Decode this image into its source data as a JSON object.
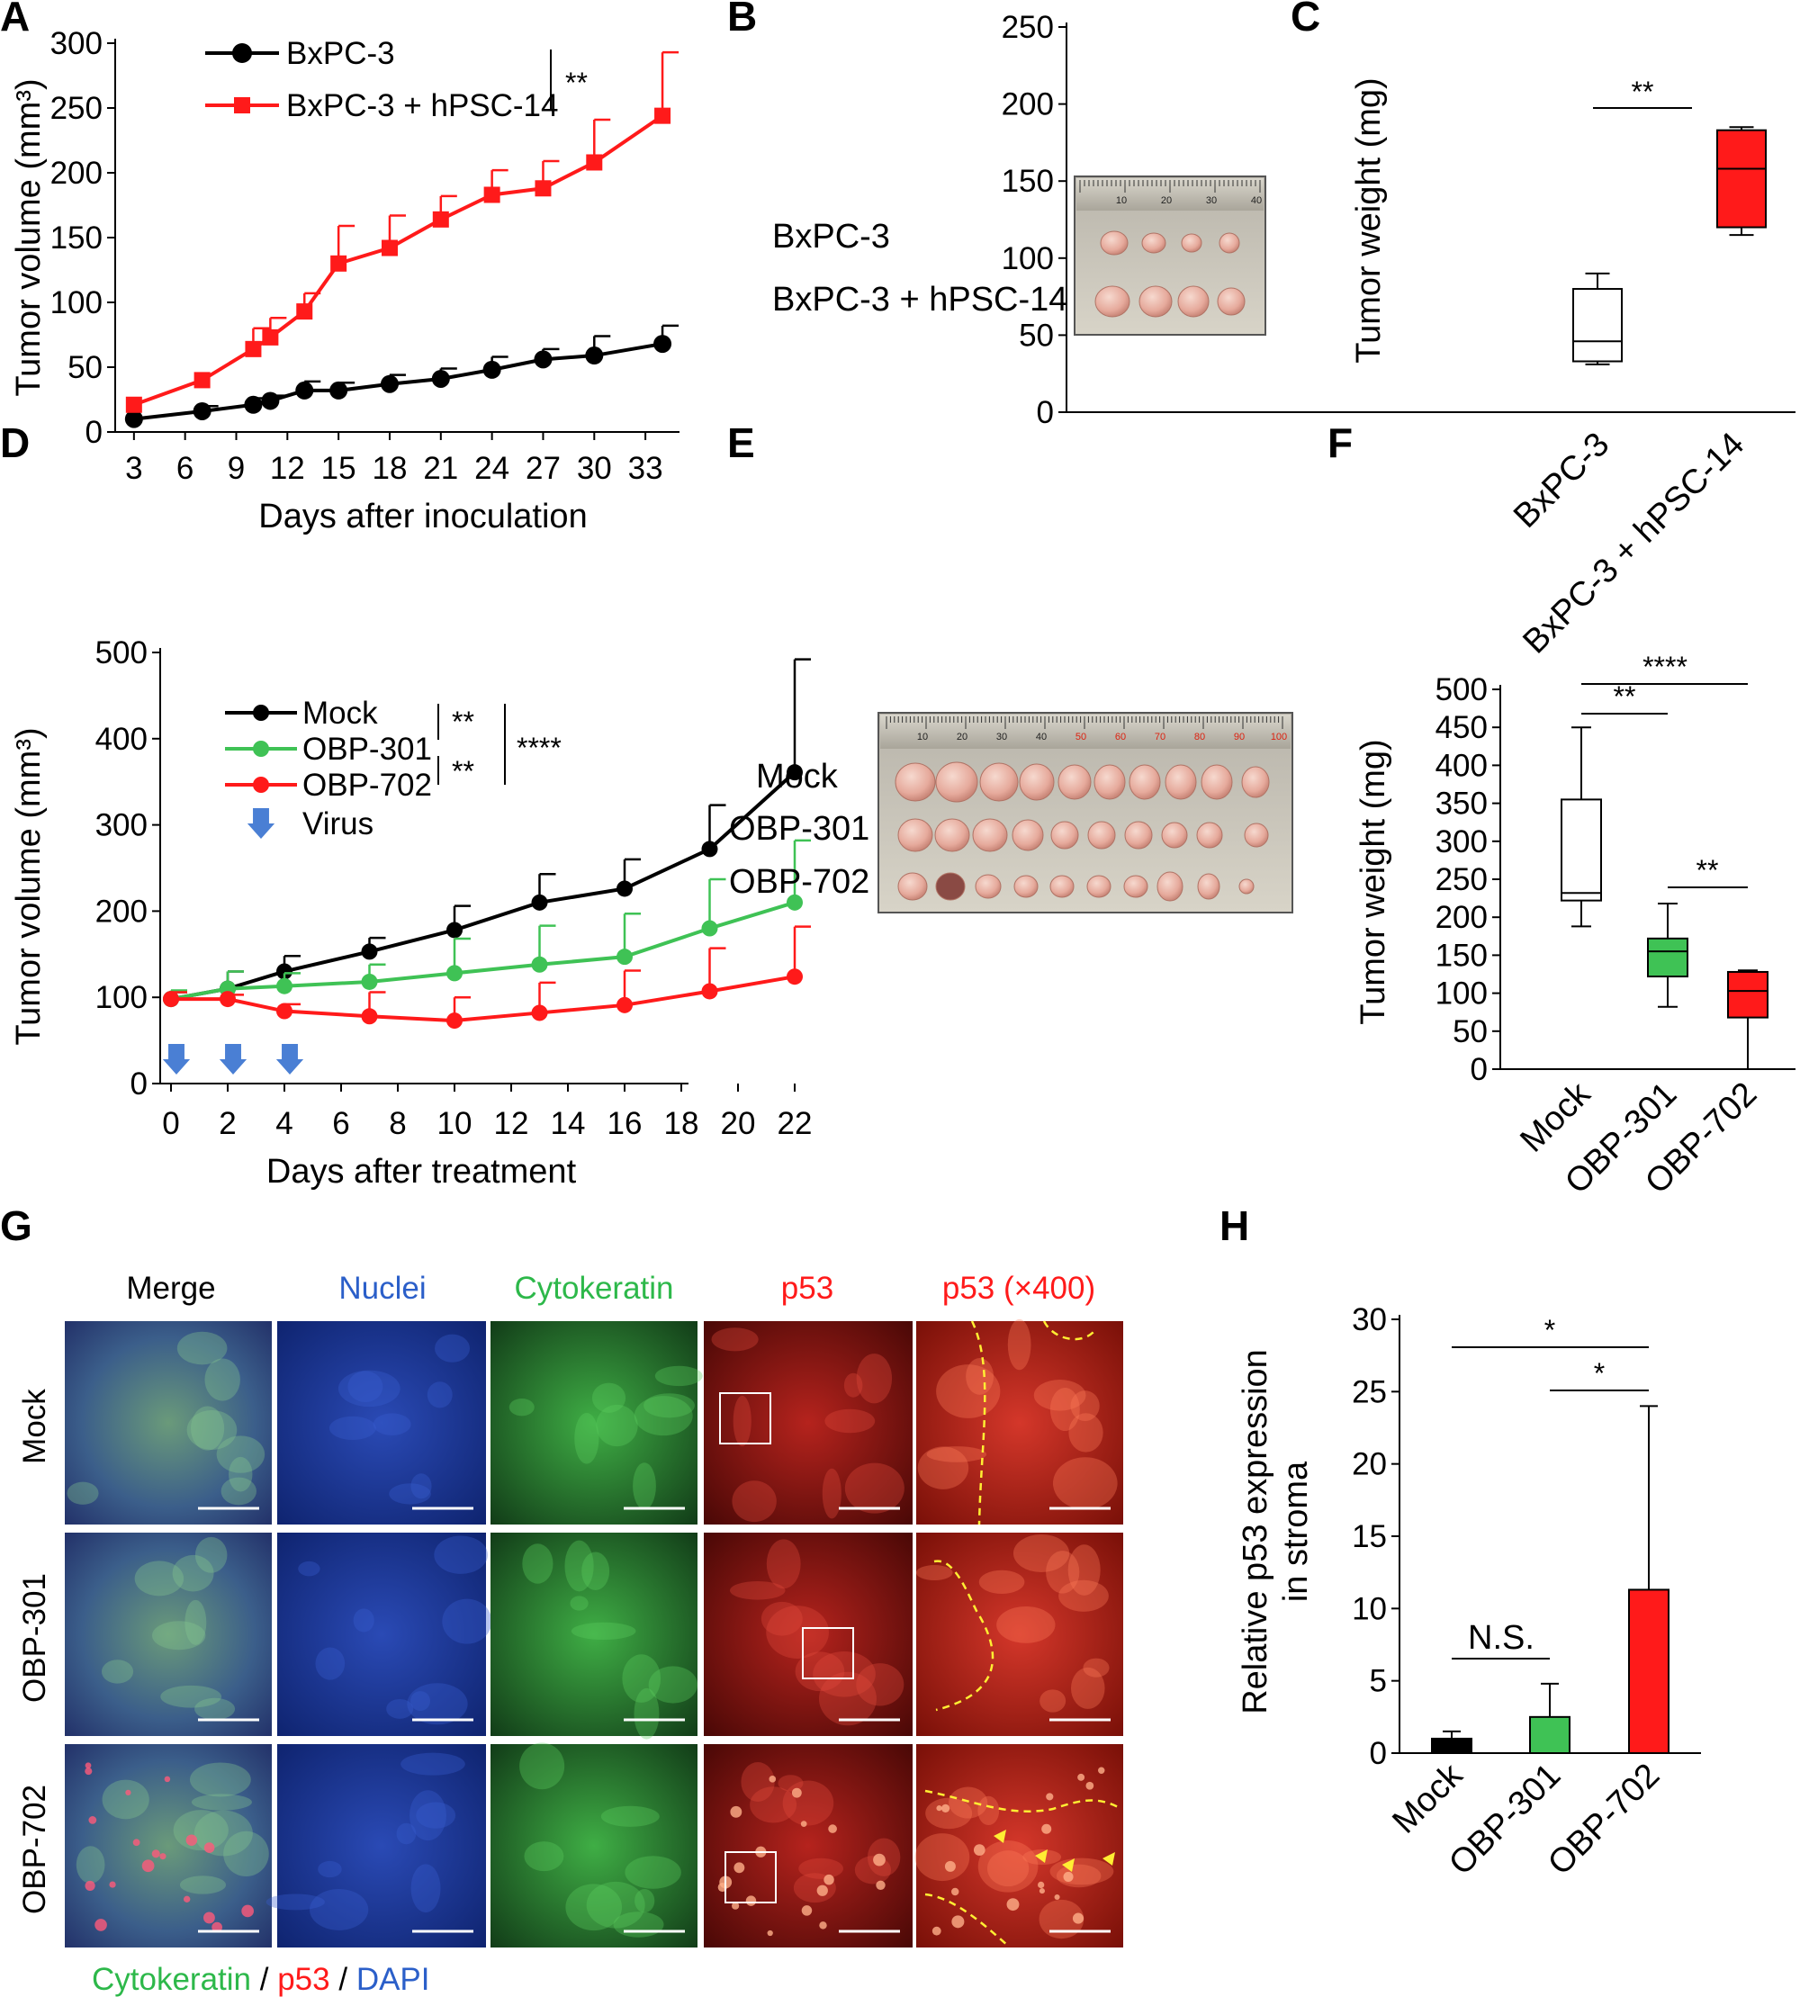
{
  "panels": {
    "A": "A",
    "B": "B",
    "C": "C",
    "D": "D",
    "E": "E",
    "F": "F",
    "G": "G",
    "H": "H"
  },
  "chart_data": [
    {
      "id": "A",
      "type": "line",
      "xlabel": "Days after inoculation",
      "ylabel": "Tumor volume (mm³)",
      "ylim": [
        0,
        300
      ],
      "yticks": [
        0,
        50,
        100,
        150,
        200,
        250,
        300
      ],
      "xticks": [
        3,
        6,
        9,
        12,
        15,
        18,
        21,
        24,
        27,
        30,
        33
      ],
      "x": [
        3,
        7,
        10,
        11,
        13,
        15,
        18,
        21,
        24,
        27,
        30,
        34
      ],
      "series": [
        {
          "name": "BxPC-3",
          "color": "#000000",
          "marker": "circle",
          "values": [
            10,
            16,
            21,
            24,
            32,
            32,
            37,
            41,
            48,
            56,
            59,
            68
          ],
          "errors": [
            0,
            4,
            5,
            4,
            7,
            6,
            7,
            8,
            10,
            8,
            15,
            14
          ]
        },
        {
          "name": "BxPC-3 + hPSC-14",
          "color": "#ff1a1a",
          "marker": "square",
          "values": [
            21,
            40,
            64,
            73,
            93,
            130,
            142,
            164,
            183,
            188,
            208,
            244
          ],
          "errors": [
            0,
            0,
            16,
            15,
            14,
            29,
            25,
            18,
            19,
            21,
            33,
            49
          ]
        }
      ],
      "significance": "**"
    },
    {
      "id": "C",
      "type": "box",
      "ylabel": "Tumor weight (mg)",
      "ylim": [
        0,
        250
      ],
      "yticks": [
        0,
        50,
        100,
        150,
        200,
        250
      ],
      "categories": [
        "BxPC-3",
        "BxPC-3 + hPSC-14"
      ],
      "boxes": [
        {
          "min": 31,
          "q1": 33,
          "median": 46,
          "q3": 80,
          "max": 90,
          "color": "#ffffff"
        },
        {
          "min": 115,
          "q1": 120,
          "median": 158,
          "q3": 183,
          "max": 185,
          "color": "#ff1a1a"
        }
      ],
      "significance": [
        "**"
      ]
    },
    {
      "id": "D",
      "type": "line",
      "xlabel": "Days after treatment",
      "ylabel": "Tumor volume (mm³)",
      "ylim": [
        0,
        500
      ],
      "yticks": [
        0,
        100,
        200,
        300,
        400,
        500
      ],
      "xticks": [
        0,
        2,
        4,
        6,
        8,
        10,
        12,
        14,
        16,
        18,
        20,
        22
      ],
      "x": [
        0,
        2,
        4,
        7,
        10,
        13,
        16,
        19,
        22
      ],
      "series": [
        {
          "name": "Mock",
          "color": "#000000",
          "values": [
            98,
            110,
            130,
            153,
            178,
            210,
            226,
            272,
            361
          ],
          "errors": [
            8,
            20,
            18,
            16,
            28,
            33,
            34,
            51,
            131
          ]
        },
        {
          "name": "OBP-301",
          "color": "#3fc255",
          "values": [
            98,
            110,
            113,
            118,
            128,
            138,
            147,
            180,
            210
          ],
          "errors": [
            10,
            20,
            15,
            20,
            40,
            45,
            50,
            57,
            72
          ]
        },
        {
          "name": "OBP-702",
          "color": "#ff1a1a",
          "values": [
            98,
            98,
            84,
            78,
            73,
            82,
            91,
            107,
            124
          ],
          "errors": [
            8,
            5,
            8,
            28,
            27,
            35,
            40,
            50,
            58
          ]
        }
      ],
      "virus_label": "Virus",
      "virus_days": [
        0,
        2,
        4
      ],
      "significance": {
        "mock_vs_301": "**",
        "301_vs_702": "**",
        "mock_vs_702": "****"
      }
    },
    {
      "id": "F",
      "type": "box",
      "ylabel": "Tumor weight (mg)",
      "ylim": [
        0,
        500
      ],
      "yticks": [
        0,
        50,
        100,
        150,
        200,
        250,
        300,
        350,
        400,
        450,
        500
      ],
      "categories": [
        "Mock",
        "OBP-301",
        "OBP-702"
      ],
      "boxes": [
        {
          "min": 188,
          "q1": 222,
          "median": 232,
          "q3": 355,
          "max": 450,
          "color": "#ffffff"
        },
        {
          "min": 82,
          "q1": 122,
          "median": 155,
          "q3": 172,
          "max": 218,
          "color": "#3fc255"
        },
        {
          "min": 0,
          "q1": 68,
          "median": 103,
          "q3": 128,
          "max": 130,
          "color": "#ff1a1a"
        }
      ],
      "significance": [
        "****",
        "**",
        "**"
      ]
    },
    {
      "id": "H",
      "type": "bar",
      "ylabel": "Relative p53 expression in stroma",
      "ylabel_lines": [
        "Relative p53 expression",
        "in stroma"
      ],
      "ylim": [
        0,
        30
      ],
      "yticks": [
        0,
        5,
        10,
        15,
        20,
        25,
        30
      ],
      "categories": [
        "Mock",
        "OBP-301",
        "OBP-702"
      ],
      "values": [
        1.0,
        2.5,
        11.3
      ],
      "errors": [
        0.5,
        2.3,
        12.7
      ],
      "colors": [
        "#000000",
        "#3fc255",
        "#ff1a1a"
      ],
      "significance": [
        "*",
        "*",
        "N.S."
      ]
    }
  ],
  "photos": {
    "B": {
      "rows": [
        "BxPC-3",
        "BxPC-3 + hPSC-14"
      ],
      "ruler": [
        "10",
        "20",
        "30",
        "40"
      ]
    },
    "E": {
      "rows": [
        "Mock",
        "OBP-301",
        "OBP-702"
      ],
      "ruler": [
        "10",
        "20",
        "30",
        "40",
        "50",
        "60",
        "70",
        "80",
        "90",
        "100"
      ]
    }
  },
  "micro": {
    "columns": [
      "Merge",
      "Nuclei",
      "Cytokeratin",
      "p53",
      "p53 (×400)"
    ],
    "column_colors": [
      "#000000",
      "#2b5fc9",
      "#2db84a",
      "#ff1a1a",
      "#ff1a1a"
    ],
    "rows": [
      "Mock",
      "OBP-301",
      "OBP-702"
    ],
    "legend": {
      "cytokeratin": "Cytokeratin",
      "sep1": " / ",
      "p53": "p53",
      "sep2": " / ",
      "dapi": "DAPI"
    }
  }
}
